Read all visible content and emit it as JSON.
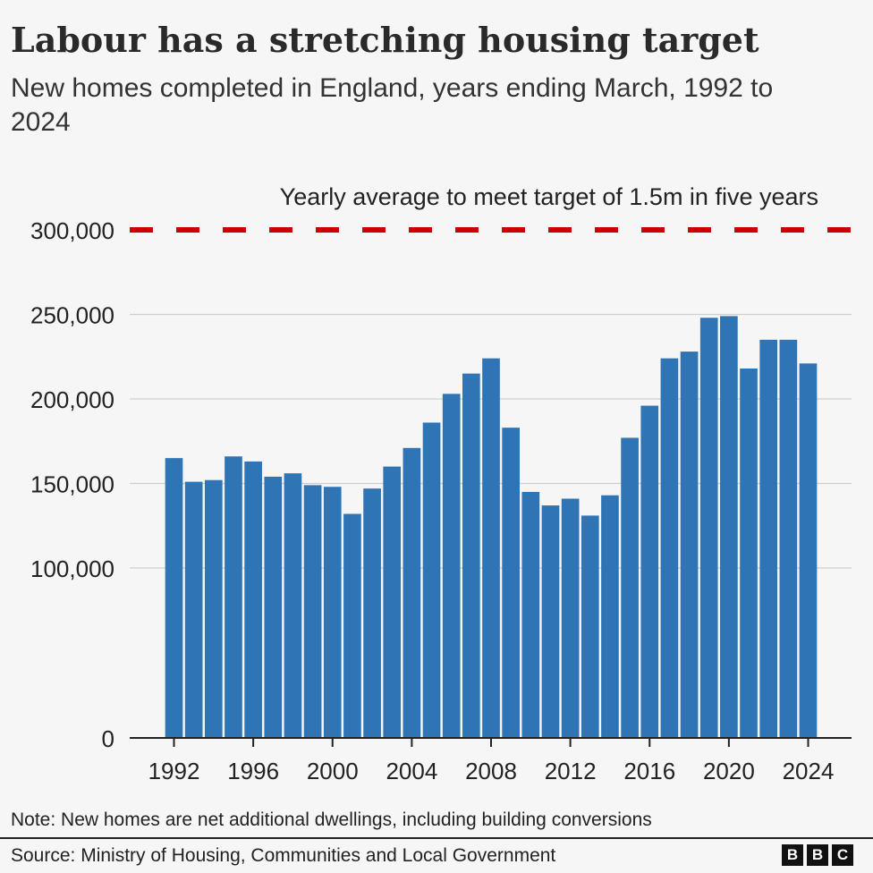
{
  "header": {
    "title": "Labour has a stretching housing target",
    "subtitle": "New homes completed in England, years ending March, 1992 to 2024"
  },
  "footer": {
    "note": "Note: New homes are net additional dwellings, including building conversions",
    "source": "Source: Ministry of Housing, Communities and Local Government",
    "logo_letters": [
      "B",
      "B",
      "C"
    ]
  },
  "chart_data": {
    "type": "bar",
    "title": "Labour has a stretching housing target",
    "subtitle": "New homes completed in England, years ending March, 1992 to 2024",
    "categories": [
      1992,
      1993,
      1994,
      1995,
      1996,
      1997,
      1998,
      1999,
      2000,
      2001,
      2002,
      2003,
      2004,
      2005,
      2006,
      2007,
      2008,
      2009,
      2010,
      2011,
      2012,
      2013,
      2014,
      2015,
      2016,
      2017,
      2018,
      2019,
      2020,
      2021,
      2022,
      2023,
      2024
    ],
    "values": [
      165000,
      151000,
      152000,
      166000,
      163000,
      154000,
      156000,
      149000,
      148000,
      132000,
      147000,
      160000,
      171000,
      186000,
      203000,
      215000,
      224000,
      183000,
      145000,
      137000,
      141000,
      131000,
      143000,
      177000,
      196000,
      224000,
      228000,
      248000,
      249000,
      218000,
      235000,
      235000,
      221000
    ],
    "x_tick_labels": [
      "1992",
      "1996",
      "2000",
      "2004",
      "2008",
      "2012",
      "2016",
      "2020",
      "2024"
    ],
    "y_tick_values": [
      0,
      100000,
      150000,
      200000,
      250000,
      300000
    ],
    "y_tick_labels": [
      "0",
      "100,000",
      "150,000",
      "200,000",
      "250,000",
      "300,000"
    ],
    "ylim": [
      0,
      300000
    ],
    "y_scale": "compressed below 100,000 (axis break)",
    "grid": true,
    "target_line": {
      "value": 300000,
      "label": "Yearly average to meet target of 1.5m in five years",
      "color": "#cc0000",
      "style": "dashed"
    },
    "bar_color": "#2f74b5",
    "xlabel": "",
    "ylabel": ""
  }
}
